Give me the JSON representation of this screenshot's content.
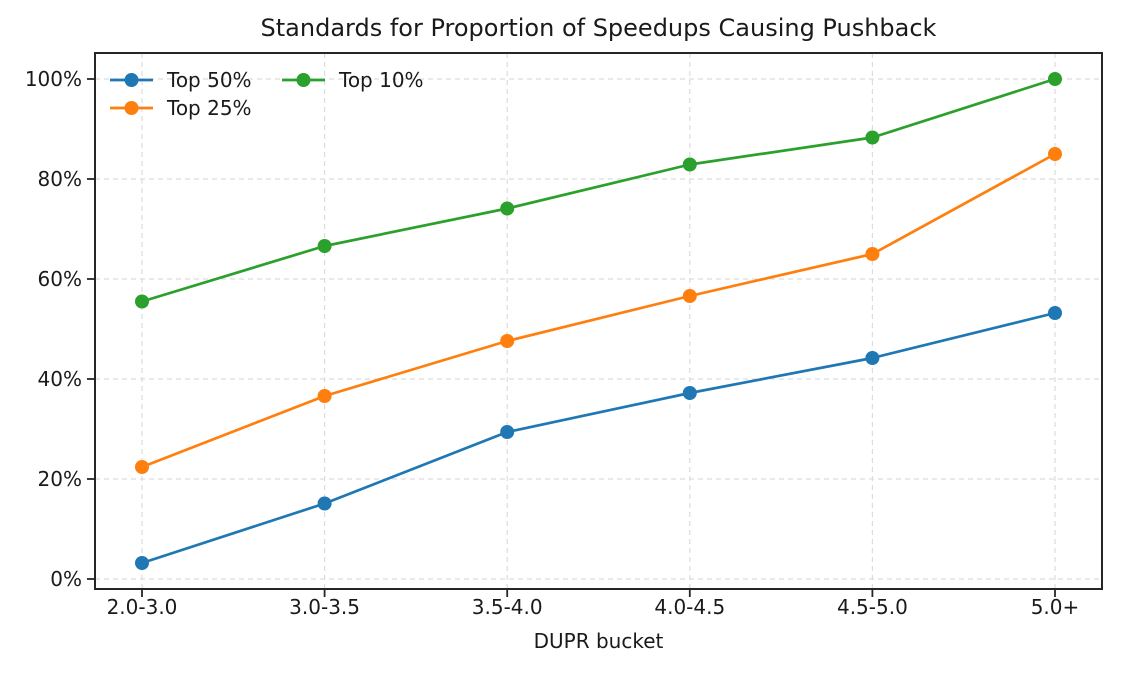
{
  "chart_data": {
    "type": "line",
    "title": "Standards for Proportion of Speedups Causing Pushback",
    "xlabel": "DUPR bucket",
    "ylabel": "",
    "categories": [
      "2.0-3.0",
      "3.0-3.5",
      "3.5-4.0",
      "4.0-4.5",
      "4.5-5.0",
      "5.0+"
    ],
    "series": [
      {
        "name": "Top 50%",
        "color": "#1f77b4",
        "values": [
          3.2,
          15.1,
          29.4,
          37.2,
          44.2,
          53.2
        ]
      },
      {
        "name": "Top 25%",
        "color": "#ff7f0e",
        "values": [
          22.4,
          36.6,
          47.6,
          56.6,
          65.0,
          85.0
        ]
      },
      {
        "name": "Top 10%",
        "color": "#2ca02c",
        "values": [
          55.5,
          66.6,
          74.1,
          82.9,
          88.3,
          100.0
        ]
      }
    ],
    "ytick_values": [
      0,
      20,
      40,
      60,
      80,
      100
    ],
    "ytick_labels": [
      "0%",
      "20%",
      "40%",
      "60%",
      "80%",
      "100%"
    ],
    "ylim": [
      -2,
      105.2
    ],
    "grid": "dashed, both axes",
    "legend_position": "upper left, 2 columns",
    "marker": "circle"
  },
  "style_colors": {
    "spine": "#262626",
    "grid": "#dcdcdc",
    "text": "#1a1a1a",
    "background": "#ffffff"
  }
}
